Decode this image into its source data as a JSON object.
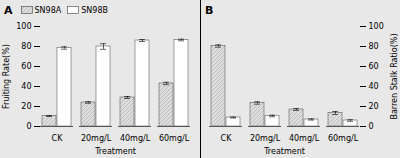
{
  "chart_data": [
    {
      "type": "bar",
      "title": "A",
      "categories": [
        "CK",
        "20mg/L",
        "40mg/L",
        "60mg/L"
      ],
      "series": [
        {
          "name": "SN98A",
          "color": "#dddddd",
          "values": [
            10.5,
            24.0,
            29.0,
            43.0
          ],
          "errors": [
            0.5,
            0.8,
            1.0,
            1.2
          ]
        },
        {
          "name": "SN98B",
          "color": "#ffffff",
          "values": [
            78.5,
            80.0,
            86.0,
            86.5
          ],
          "errors": [
            1.2,
            2.8,
            1.0,
            0.8
          ]
        }
      ],
      "xlabel": "Treatment",
      "ylabel": "Fruiting Rate(%)",
      "ylim": [
        0,
        100
      ],
      "yticks": [
        0,
        20,
        40,
        60,
        80,
        100
      ],
      "legend": "upper left"
    },
    {
      "type": "bar",
      "title": "B",
      "categories": [
        "CK",
        "20mg/L",
        "40mg/L",
        "60mg/L"
      ],
      "series": [
        {
          "name": "SN98A",
          "color": "#dddddd",
          "values": [
            80.5,
            23.5,
            17.0,
            13.5
          ],
          "errors": [
            1.2,
            1.2,
            1.0,
            1.5
          ]
        },
        {
          "name": "SN98B",
          "color": "#ffffff",
          "values": [
            9.0,
            10.5,
            7.0,
            6.0
          ],
          "errors": [
            0.5,
            0.8,
            0.6,
            0.8
          ]
        }
      ],
      "xlabel": "Treatment",
      "ylabel": "Barren Stalk Ratio(%)",
      "ylim": [
        0,
        100
      ],
      "yticks": [
        0,
        20,
        40,
        60,
        80,
        100
      ]
    }
  ]
}
